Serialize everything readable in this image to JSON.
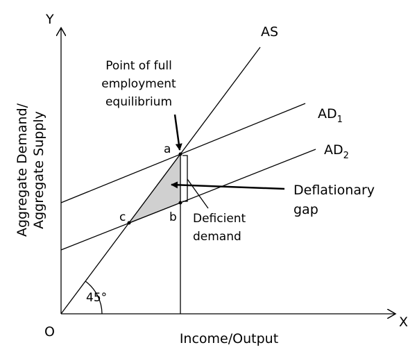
{
  "axes": {
    "y": "Y",
    "x": "X",
    "origin": "O",
    "y_title": [
      "Aggregate Demand/",
      "Aggregate Supply"
    ],
    "x_title": "Income/Output",
    "angle": "45°"
  },
  "curves": {
    "as": "AS",
    "ad1": {
      "text": "AD",
      "subscript": "1"
    },
    "ad2": {
      "text": "AD",
      "subscript": "2"
    }
  },
  "points": {
    "a": "a",
    "b": "b",
    "c": "c"
  },
  "annotations": {
    "equilibrium": [
      "Point of full",
      "employment",
      "equilibrium"
    ],
    "gap": [
      "Deflationary",
      "gap"
    ],
    "deficient": [
      "Deficient",
      "demand"
    ]
  }
}
